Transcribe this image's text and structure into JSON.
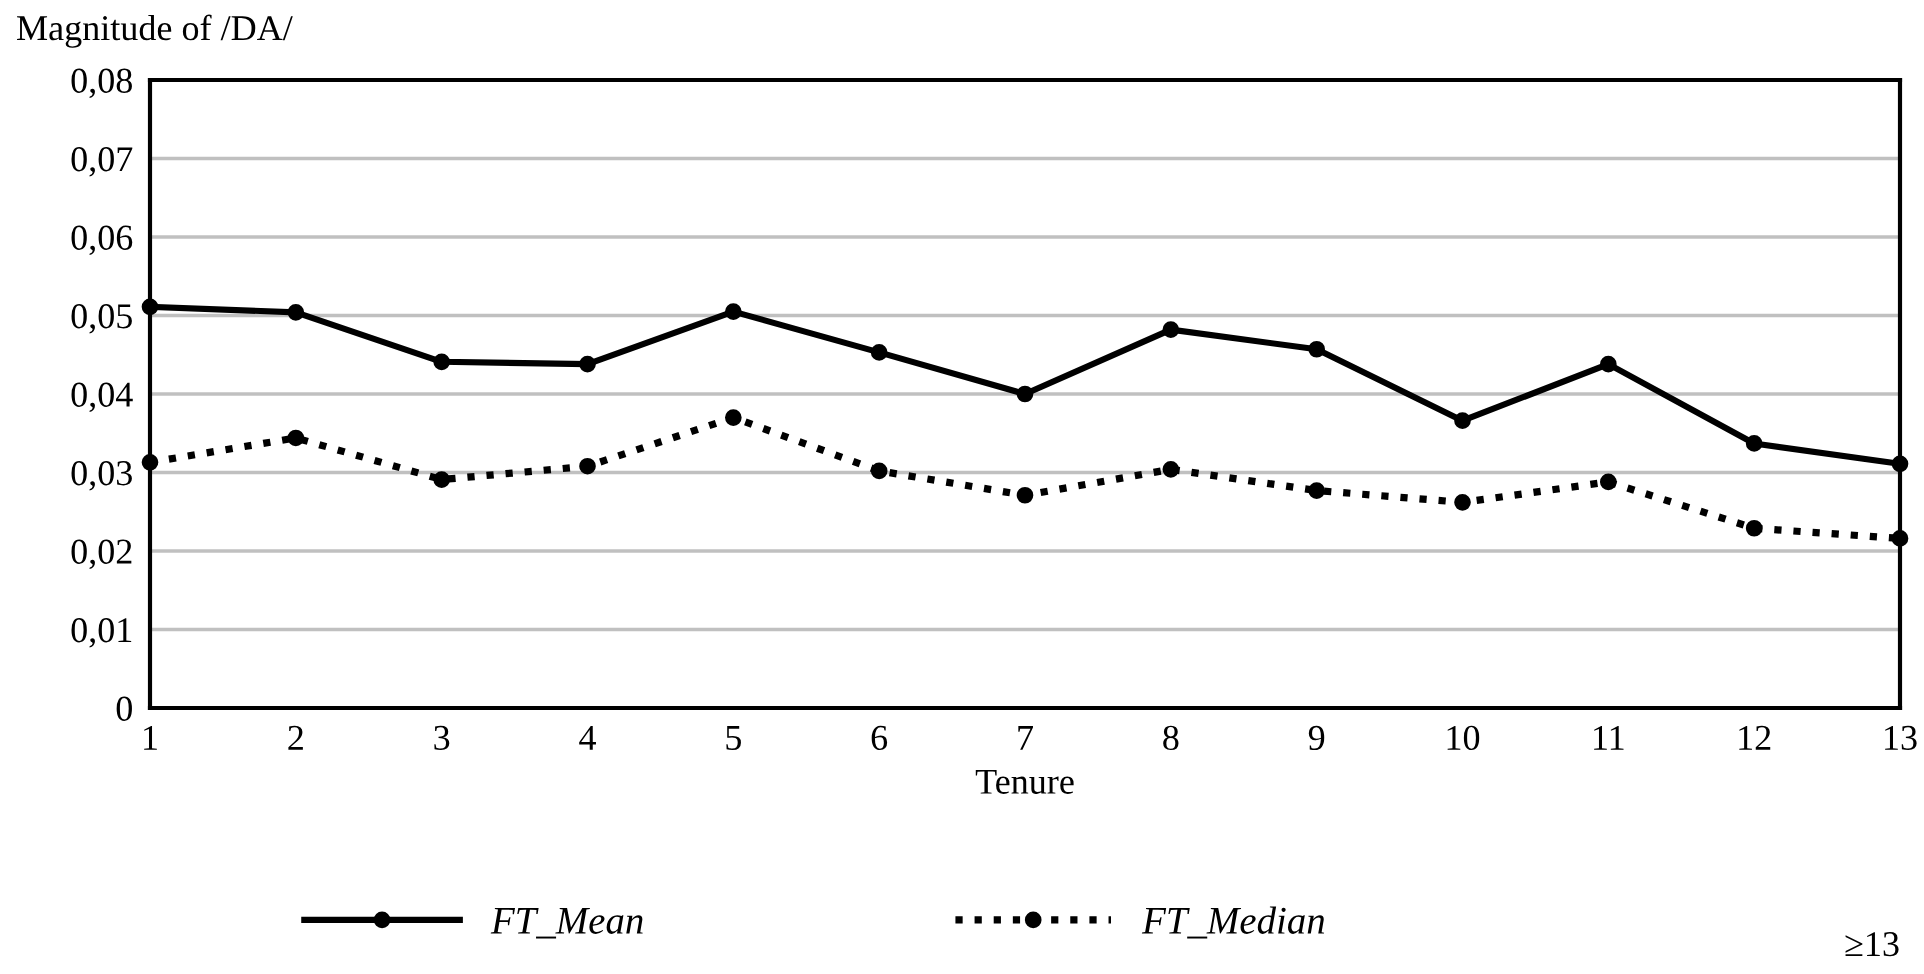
{
  "chart_data": {
    "type": "line",
    "ylabel": "Magnitude of /DA/",
    "xlabel": "Tenure",
    "x": [
      1,
      2,
      3,
      4,
      5,
      6,
      7,
      8,
      9,
      10,
      11,
      12,
      13
    ],
    "series": [
      {
        "name": "FT_Mean",
        "color": "#000000",
        "line_style": "solid",
        "values": [
          0.0511,
          0.0504,
          0.0441,
          0.0438,
          0.0505,
          0.0453,
          0.04,
          0.0482,
          0.0457,
          0.0366,
          0.0438,
          0.0337,
          0.0311
        ]
      },
      {
        "name": "FT_Median",
        "color": "#000000",
        "line_style": "dotted",
        "values": [
          0.0313,
          0.0344,
          0.0291,
          0.0308,
          0.037,
          0.0302,
          0.0271,
          0.0304,
          0.0277,
          0.0262,
          0.0288,
          0.0229,
          0.0216
        ]
      }
    ],
    "marker": "circle",
    "xlim": [
      1,
      13
    ],
    "xticks": [
      1,
      2,
      3,
      4,
      5,
      6,
      7,
      8,
      9,
      10,
      11,
      12,
      13
    ],
    "ylim": [
      0,
      0.08
    ],
    "yticks": [
      0,
      {
        "value": 0.01,
        "label": "0,01"
      },
      {
        "value": 0.02,
        "label": "0,02"
      },
      {
        "value": 0.03,
        "label": "0,03"
      },
      {
        "value": 0.04,
        "label": "0,04"
      },
      {
        "value": 0.05,
        "label": "0,05"
      },
      {
        "value": 0.06,
        "label": "0,06"
      },
      {
        "value": 0.07,
        "label": "0,07"
      },
      {
        "value": 0.08,
        "label": "0,08"
      }
    ],
    "grid": "y",
    "legend": "bottom",
    "annotations": [
      "≥13"
    ]
  }
}
